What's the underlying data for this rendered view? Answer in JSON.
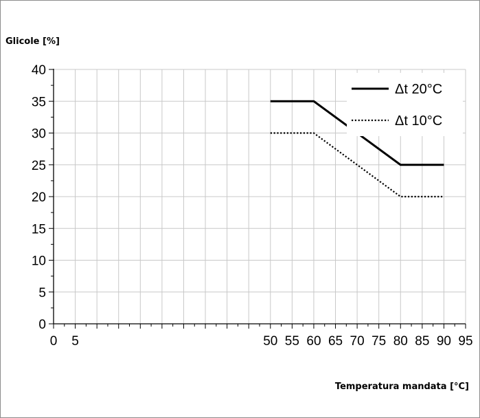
{
  "chart_data": {
    "type": "line",
    "ylabel": "Glicole [%]",
    "xlabel": "Temperatura mandata [°C]",
    "xlim": [
      0,
      95
    ],
    "ylim": [
      0,
      40
    ],
    "x_ticks": [
      "0",
      "5",
      "50",
      "55",
      "60",
      "65",
      "70",
      "75",
      "80",
      "85",
      "90",
      "95"
    ],
    "x_tick_values": [
      0,
      5,
      50,
      55,
      60,
      65,
      70,
      75,
      80,
      85,
      90,
      95
    ],
    "y_ticks": [
      "0",
      "5",
      "10",
      "15",
      "20",
      "25",
      "30",
      "35",
      "40"
    ],
    "y_tick_values": [
      0,
      5,
      10,
      15,
      20,
      25,
      30,
      35,
      40
    ],
    "grid": true,
    "legend_position": "top-right",
    "series": [
      {
        "name": "Δt 20°C",
        "style": "solid",
        "color": "#000000",
        "x": [
          50,
          60,
          80,
          90
        ],
        "y": [
          35,
          35,
          25,
          25
        ]
      },
      {
        "name": "Δt 10°C",
        "style": "dotted",
        "color": "#000000",
        "x": [
          50,
          60,
          80,
          90
        ],
        "y": [
          30,
          30,
          20,
          20
        ]
      }
    ]
  }
}
